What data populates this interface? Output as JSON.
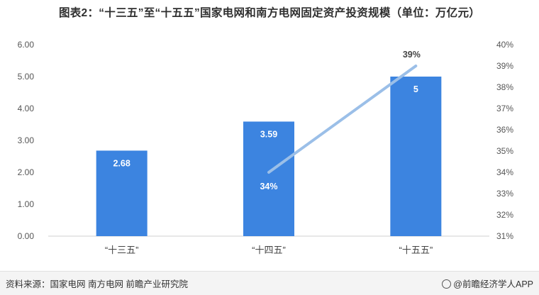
{
  "title": "图表2：“十三五”至“十五五”国家电网和南方电网固定资产投资规模（单位：万亿元）",
  "footer": {
    "source": "资料来源：国家电网 南方电网  前瞻产业研究院",
    "brand": "@前瞻经济学人APP",
    "brand_icon": "qianzhan-logo-icon"
  },
  "colors": {
    "bar": "#3c84e0",
    "line": "#9bbfe8",
    "axis": "#d0d0d0",
    "bar_label": "#ffffff",
    "line_label": "#444444"
  },
  "chart_data": {
    "type": "bar",
    "categories": [
      "“十三五”",
      "“十四五”",
      "“十五五”"
    ],
    "series": [
      {
        "type": "bar",
        "axis": "left",
        "values": [
          2.68,
          3.59,
          5
        ],
        "labels": [
          "2.68",
          "3.59",
          "5"
        ]
      },
      {
        "type": "line",
        "axis": "right",
        "points": [
          {
            "x": "“十四五”",
            "y": 34
          },
          {
            "x": "“十五五”",
            "y": 39
          }
        ],
        "labels": [
          "34%",
          "39%"
        ]
      }
    ],
    "y_left": {
      "min": 0,
      "max": 6,
      "ticks": [
        "0.00",
        "1.00",
        "2.00",
        "3.00",
        "4.00",
        "5.00",
        "6.00"
      ]
    },
    "y_right": {
      "min": 31,
      "max": 40,
      "ticks": [
        "31%",
        "32%",
        "33%",
        "34%",
        "35%",
        "36%",
        "37%",
        "38%",
        "39%",
        "40%"
      ]
    },
    "grid": false,
    "legend": "none"
  }
}
